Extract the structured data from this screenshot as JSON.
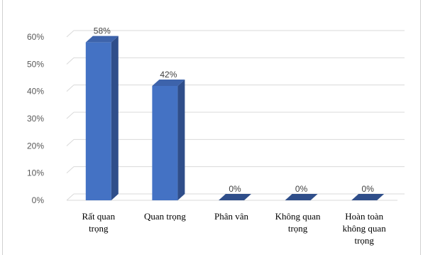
{
  "chart_data": {
    "type": "bar",
    "style": "3d-column",
    "categories": [
      [
        "Rất quan",
        "trọng"
      ],
      [
        "Quan trọng"
      ],
      [
        "Phân vân"
      ],
      [
        "Không quan",
        "trọng"
      ],
      [
        "Hoàn toàn",
        "không quan",
        "trọng"
      ]
    ],
    "values": [
      58,
      42,
      0,
      0,
      0
    ],
    "data_labels": [
      "58%",
      "42%",
      "0%",
      "0%",
      "0%"
    ],
    "ylim": [
      0,
      60
    ],
    "yticks": [
      "0%",
      "10%",
      "20%",
      "30%",
      "40%",
      "50%",
      "60%"
    ],
    "grid": true,
    "legend": "none",
    "colors": {
      "bar_front": "#4472c4",
      "bar_side": "#2f4e8a",
      "bar_top": "#3d63ab",
      "grid": "#d9d9d9"
    }
  }
}
